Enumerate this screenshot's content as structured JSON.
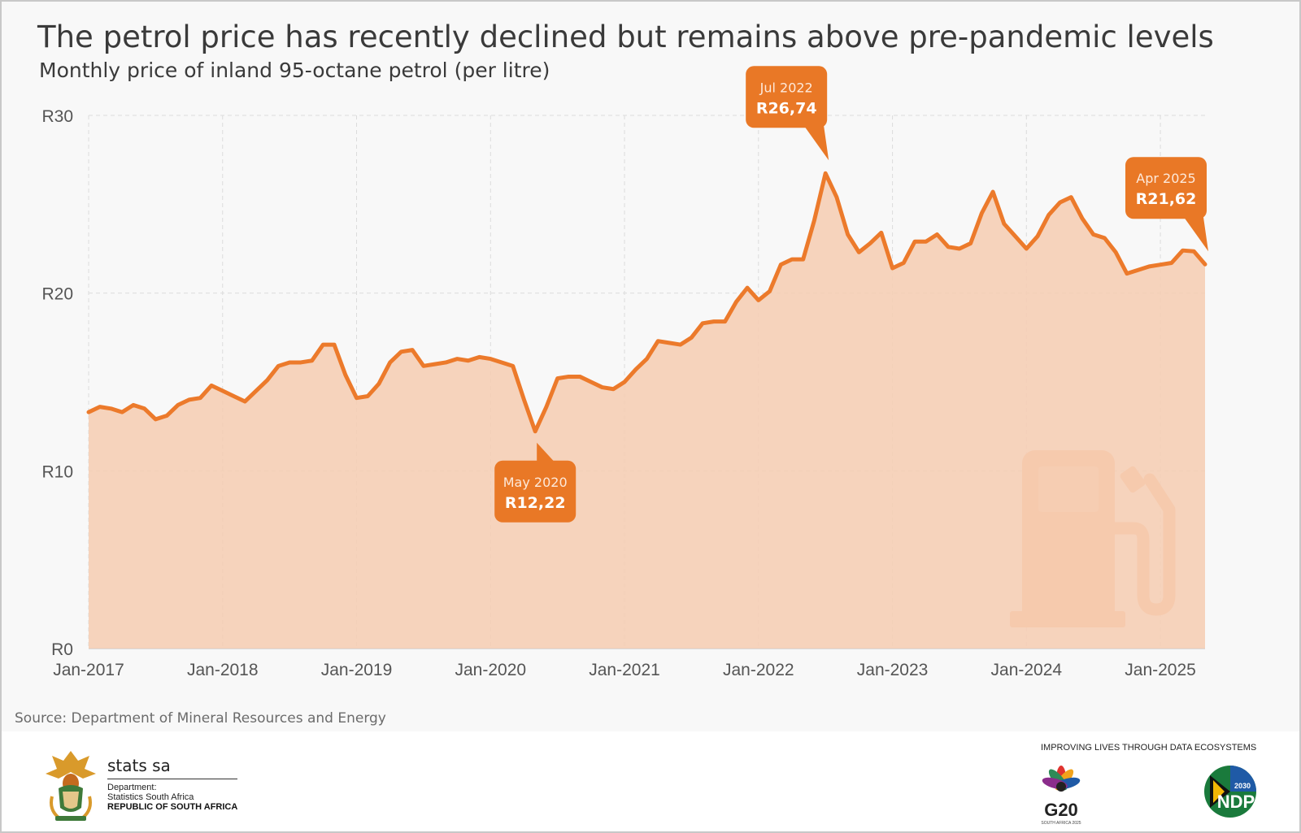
{
  "header": {
    "title": "The petrol price has recently declined but remains above pre-pandemic levels",
    "subtitle": "Monthly price of inland 95-octane petrol (per litre)"
  },
  "source": "Source: Department of Mineral Resources and Energy",
  "colors": {
    "line": "#ec7a2b",
    "fill": "#f6cdb2",
    "callout": "#e97826",
    "grid": "#dcdcdc",
    "axis_text": "#555555",
    "pump_icon": "#f3b991"
  },
  "chart_data": {
    "type": "area",
    "title": "The petrol price has recently declined but remains above pre-pandemic levels",
    "subtitle": "Monthly price of inland 95-octane petrol (per litre)",
    "xlabel": "",
    "ylabel": "",
    "ylim": [
      0,
      30
    ],
    "yticks": [
      {
        "value": 0,
        "label": "R0"
      },
      {
        "value": 10,
        "label": "R10"
      },
      {
        "value": 20,
        "label": "R20"
      },
      {
        "value": 30,
        "label": "R30"
      }
    ],
    "xticks": [
      {
        "index": 0,
        "label": "Jan-2017"
      },
      {
        "index": 12,
        "label": "Jan-2018"
      },
      {
        "index": 24,
        "label": "Jan-2019"
      },
      {
        "index": 36,
        "label": "Jan-2020"
      },
      {
        "index": 48,
        "label": "Jan-2021"
      },
      {
        "index": 60,
        "label": "Jan-2022"
      },
      {
        "index": 72,
        "label": "Jan-2023"
      },
      {
        "index": 84,
        "label": "Jan-2024"
      },
      {
        "index": 96,
        "label": "Jan-2025"
      }
    ],
    "start_month": "Jan-2017",
    "grid": true,
    "legend": "none",
    "series": [
      {
        "name": "Inland 95-octane petrol (R/litre)",
        "values": [
          13.3,
          13.6,
          13.5,
          13.3,
          13.7,
          13.5,
          12.9,
          13.1,
          13.7,
          14.0,
          14.1,
          14.8,
          14.5,
          14.2,
          13.9,
          14.5,
          15.1,
          15.9,
          16.1,
          16.1,
          16.2,
          17.1,
          17.1,
          15.4,
          14.1,
          14.2,
          14.9,
          16.1,
          16.7,
          16.8,
          15.9,
          16.0,
          16.1,
          16.3,
          16.2,
          16.4,
          16.3,
          16.1,
          15.9,
          14.0,
          12.22,
          13.6,
          15.2,
          15.3,
          15.3,
          15.0,
          14.7,
          14.6,
          15.0,
          15.7,
          16.3,
          17.3,
          17.2,
          17.1,
          17.5,
          18.3,
          18.4,
          18.4,
          19.5,
          20.3,
          19.6,
          20.1,
          21.6,
          21.9,
          21.9,
          24.1,
          26.74,
          25.4,
          23.3,
          22.3,
          22.8,
          23.4,
          21.4,
          21.7,
          22.9,
          22.9,
          23.3,
          22.6,
          22.5,
          22.8,
          24.5,
          25.7,
          23.9,
          23.2,
          22.5,
          23.2,
          24.4,
          25.1,
          25.4,
          24.2,
          23.3,
          23.1,
          22.3,
          21.1,
          21.3,
          21.5,
          21.6,
          21.7,
          22.4,
          22.35,
          21.62
        ]
      }
    ],
    "annotations": [
      {
        "index": 40,
        "period": "May 2020",
        "value_label": "R12,22",
        "position": "below"
      },
      {
        "index": 66,
        "period": "Jul 2022",
        "value_label": "R26,74",
        "position": "above-left"
      },
      {
        "index": 100,
        "period": "Apr 2025",
        "value_label": "R21,62",
        "position": "above-left"
      }
    ]
  },
  "footer": {
    "org_name": "stats sa",
    "dept_line1": "Department:",
    "dept_line2": "Statistics South Africa",
    "dept_line3": "REPUBLIC OF SOUTH AFRICA",
    "tagline": "IMPROVING LIVES THROUGH DATA ECOSYSTEMS",
    "g20_label": "G20",
    "g20_sub": "SOUTH AFRICA 2025",
    "ndp_label": "NDP",
    "ndp_year": "2030"
  }
}
